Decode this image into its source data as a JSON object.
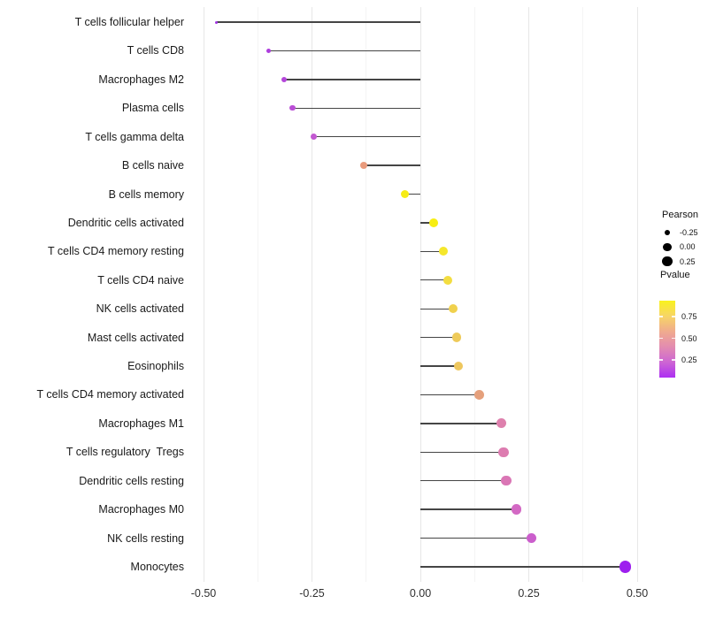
{
  "chart_data": {
    "type": "scatter",
    "subtype": "lollipop",
    "title": "",
    "xlabel": "",
    "ylabel": "",
    "grid": true,
    "legend_position": "right",
    "x_axis": {
      "range": [
        -0.537,
        0.529
      ],
      "ticks": [
        -0.5,
        -0.25,
        0,
        0.25,
        0.5
      ],
      "tick_labels": [
        "-0.50",
        "-0.25",
        "0.00",
        "0.25",
        "0.50"
      ],
      "minor_ticks": [
        -0.375,
        -0.125,
        0.125,
        0.375
      ]
    },
    "points": [
      {
        "label": "T cells follicular helper",
        "pearson": -0.47,
        "pvalue_est": 0.08,
        "color": "#a133e2"
      },
      {
        "label": "T cells CD8",
        "pearson": -0.35,
        "pvalue_est": 0.12,
        "color": "#ad3ddd"
      },
      {
        "label": "Macrophages M2",
        "pearson": -0.315,
        "pvalue_est": 0.15,
        "color": "#b446da"
      },
      {
        "label": "Plasma cells",
        "pearson": -0.295,
        "pvalue_est": 0.17,
        "color": "#ba4ed6"
      },
      {
        "label": "T cells gamma delta",
        "pearson": -0.245,
        "pvalue_est": 0.2,
        "color": "#c258d1"
      },
      {
        "label": "B cells naive",
        "pearson": -0.13,
        "pvalue_est": 0.5,
        "color": "#e99b7d"
      },
      {
        "label": "B cells memory",
        "pearson": -0.035,
        "pvalue_est": 0.88,
        "color": "#f6ec16"
      },
      {
        "label": "Dendritic cells activated",
        "pearson": 0.03,
        "pvalue_est": 0.9,
        "color": "#f7ee12"
      },
      {
        "label": "T cells CD4 memory resting",
        "pearson": 0.053,
        "pvalue_est": 0.82,
        "color": "#f5e72b"
      },
      {
        "label": "T cells CD4 naive",
        "pearson": 0.063,
        "pvalue_est": 0.76,
        "color": "#f3dd40"
      },
      {
        "label": "NK cells activated",
        "pearson": 0.076,
        "pvalue_est": 0.71,
        "color": "#f0d14d"
      },
      {
        "label": "Mast cells activated",
        "pearson": 0.084,
        "pvalue_est": 0.66,
        "color": "#eeca59"
      },
      {
        "label": "Eosinophils",
        "pearson": 0.088,
        "pvalue_est": 0.65,
        "color": "#eec75e"
      },
      {
        "label": "T cells CD4 memory activated",
        "pearson": 0.135,
        "pvalue_est": 0.52,
        "color": "#e5a07c"
      },
      {
        "label": "Macrophages M1",
        "pearson": 0.186,
        "pvalue_est": 0.36,
        "color": "#de80ad"
      },
      {
        "label": "T cells regulatory  Tregs",
        "pearson": 0.192,
        "pvalue_est": 0.34,
        "color": "#dd7cb0"
      },
      {
        "label": "Dendritic cells resting",
        "pearson": 0.198,
        "pvalue_est": 0.32,
        "color": "#da76b5"
      },
      {
        "label": "Macrophages M0",
        "pearson": 0.221,
        "pvalue_est": 0.27,
        "color": "#d369c4"
      },
      {
        "label": "NK cells resting",
        "pearson": 0.256,
        "pvalue_est": 0.22,
        "color": "#cb5ecc"
      },
      {
        "label": "Monocytes",
        "pearson": 0.473,
        "pvalue_est": 0.05,
        "color": "#9d1fee"
      }
    ]
  },
  "legend": {
    "size": {
      "title": "Pearson",
      "dot_color": "#000000",
      "items": [
        {
          "label": "-0.25",
          "value": -0.25
        },
        {
          "label": "0.00",
          "value": 0
        },
        {
          "label": "0.25",
          "value": 0.25
        }
      ]
    },
    "color": {
      "title": "Pvalue",
      "labels": [
        "0.75",
        "0.50",
        "0.25"
      ],
      "gradient_top_to_bottom": [
        "#f9f21d",
        "#f7d566",
        "#f0ab8e",
        "#e38cb0",
        "#cd66d3",
        "#ad2ff2"
      ]
    }
  },
  "style": {
    "stem_color": "#454545",
    "grid_major_color": "#e7e7e7",
    "grid_minor_color": "#f4f4f4",
    "axis_text_color": "#303030",
    "label_text_color": "#1a1a1a",
    "background": "#ffffff"
  }
}
